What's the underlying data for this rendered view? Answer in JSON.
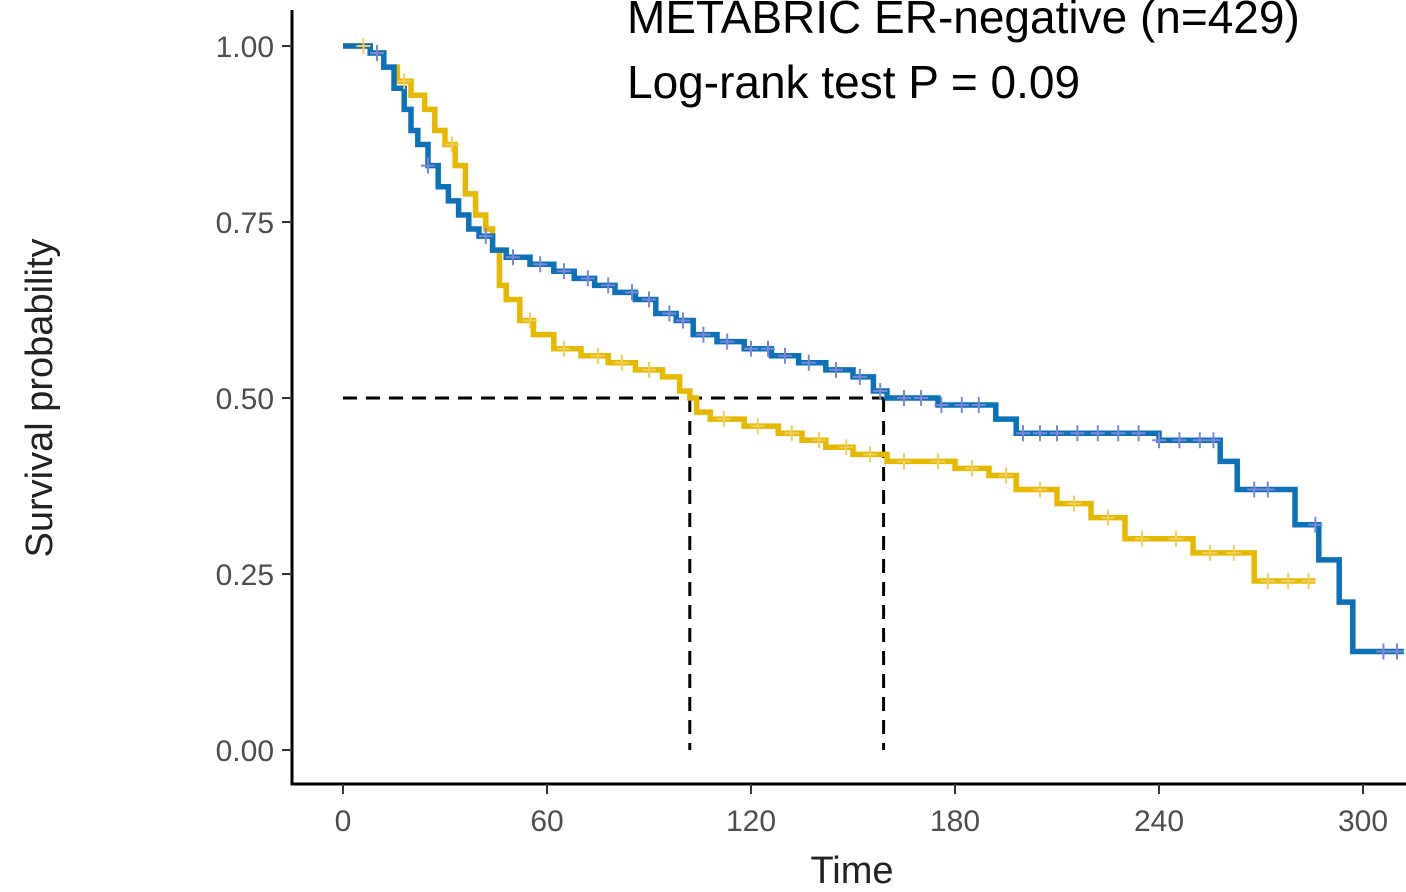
{
  "chart_data": {
    "type": "line",
    "subtype": "kaplan-meier",
    "title": "",
    "annotations": [
      "METABRIC ER-negative (n=429)",
      "Log-rank test P = 0.09"
    ],
    "xlabel": "Time",
    "ylabel": "Survival probability",
    "xlim": [
      -15,
      312
    ],
    "ylim": [
      -0.05,
      1.05
    ],
    "x_ticks": [
      0,
      60,
      120,
      180,
      240,
      300
    ],
    "x_tick_labels": [
      "0",
      "60",
      "120",
      "180",
      "240",
      "300"
    ],
    "y_ticks": [
      0,
      0.25,
      0.5,
      0.75,
      1
    ],
    "y_tick_labels": [
      "0.00",
      "0.25",
      "0.50",
      "0.75",
      "1.00"
    ],
    "grid": false,
    "legend": "none",
    "series": [
      {
        "color": "#0b72b9",
        "censor_color": "#7a88d8",
        "points": [
          [
            0,
            1.0
          ],
          [
            4,
            1.0
          ],
          [
            8,
            0.99
          ],
          [
            12,
            0.97
          ],
          [
            15,
            0.94
          ],
          [
            18,
            0.91
          ],
          [
            20,
            0.88
          ],
          [
            22,
            0.86
          ],
          [
            25,
            0.83
          ],
          [
            28,
            0.8
          ],
          [
            31,
            0.78
          ],
          [
            34,
            0.76
          ],
          [
            37,
            0.74
          ],
          [
            40,
            0.73
          ],
          [
            44,
            0.71
          ],
          [
            48,
            0.7
          ],
          [
            55,
            0.69
          ],
          [
            62,
            0.68
          ],
          [
            68,
            0.67
          ],
          [
            74,
            0.66
          ],
          [
            80,
            0.65
          ],
          [
            86,
            0.64
          ],
          [
            92,
            0.62
          ],
          [
            98,
            0.61
          ],
          [
            103,
            0.59
          ],
          [
            110,
            0.58
          ],
          [
            118,
            0.57
          ],
          [
            126,
            0.56
          ],
          [
            134,
            0.55
          ],
          [
            142,
            0.54
          ],
          [
            150,
            0.53
          ],
          [
            156,
            0.51
          ],
          [
            160,
            0.5
          ],
          [
            175,
            0.49
          ],
          [
            192,
            0.47
          ],
          [
            198,
            0.45
          ],
          [
            215,
            0.45
          ],
          [
            240,
            0.44
          ],
          [
            258,
            0.41
          ],
          [
            263,
            0.37
          ],
          [
            275,
            0.37
          ],
          [
            280,
            0.32
          ],
          [
            287,
            0.27
          ],
          [
            293,
            0.21
          ],
          [
            297,
            0.14
          ],
          [
            312,
            0.14
          ]
        ],
        "censor_x": [
          10,
          25,
          42,
          50,
          58,
          65,
          72,
          78,
          85,
          90,
          96,
          100,
          106,
          113,
          120,
          125,
          130,
          137,
          145,
          152,
          158,
          165,
          170,
          176,
          182,
          187,
          200,
          205,
          210,
          216,
          222,
          228,
          234,
          240,
          246,
          252,
          256,
          268,
          272,
          286,
          306,
          310
        ]
      },
      {
        "color": "#e7b800",
        "censor_color": "#f3cc5a",
        "points": [
          [
            0,
            1.0
          ],
          [
            8,
            0.99
          ],
          [
            12,
            0.97
          ],
          [
            16,
            0.95
          ],
          [
            20,
            0.93
          ],
          [
            24,
            0.91
          ],
          [
            27,
            0.88
          ],
          [
            30,
            0.86
          ],
          [
            33,
            0.83
          ],
          [
            36,
            0.79
          ],
          [
            39,
            0.76
          ],
          [
            42,
            0.74
          ],
          [
            44,
            0.71
          ],
          [
            46,
            0.66
          ],
          [
            48,
            0.64
          ],
          [
            52,
            0.61
          ],
          [
            56,
            0.59
          ],
          [
            62,
            0.57
          ],
          [
            70,
            0.56
          ],
          [
            78,
            0.55
          ],
          [
            86,
            0.54
          ],
          [
            94,
            0.53
          ],
          [
            99,
            0.51
          ],
          [
            102,
            0.5
          ],
          [
            104,
            0.48
          ],
          [
            108,
            0.47
          ],
          [
            118,
            0.46
          ],
          [
            128,
            0.45
          ],
          [
            135,
            0.44
          ],
          [
            142,
            0.43
          ],
          [
            150,
            0.42
          ],
          [
            160,
            0.41
          ],
          [
            170,
            0.41
          ],
          [
            180,
            0.4
          ],
          [
            190,
            0.39
          ],
          [
            198,
            0.37
          ],
          [
            210,
            0.35
          ],
          [
            220,
            0.33
          ],
          [
            230,
            0.3
          ],
          [
            250,
            0.28
          ],
          [
            268,
            0.24
          ],
          [
            286,
            0.24
          ]
        ],
        "censor_x": [
          6,
          18,
          32,
          55,
          65,
          75,
          82,
          90,
          112,
          122,
          132,
          140,
          148,
          155,
          165,
          175,
          185,
          195,
          205,
          215,
          225,
          235,
          245,
          255,
          262,
          272,
          278,
          284
        ]
      }
    ],
    "median_lines": [
      {
        "x": 102,
        "y": 0.5
      },
      {
        "x": 159,
        "y": 0.5
      }
    ]
  }
}
